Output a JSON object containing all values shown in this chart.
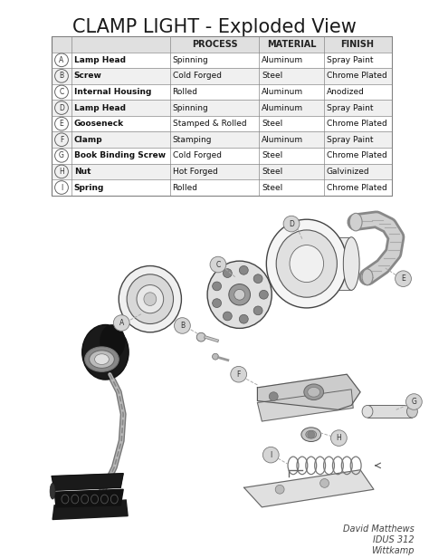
{
  "title": "CLAMP LIGHT - Exploded View",
  "title_fontsize": 15,
  "background_color": "#ffffff",
  "table_rows": [
    [
      "A",
      "Lamp Head",
      "Spinning",
      "Aluminum",
      "Spray Paint"
    ],
    [
      "B",
      "Screw",
      "Cold Forged",
      "Steel",
      "Chrome Plated"
    ],
    [
      "C",
      "Internal Housing",
      "Rolled",
      "Aluminum",
      "Anodized"
    ],
    [
      "D",
      "Lamp Head",
      "Spinning",
      "Aluminum",
      "Spray Paint"
    ],
    [
      "E",
      "Gooseneck",
      "Stamped & Rolled",
      "Steel",
      "Chrome Plated"
    ],
    [
      "F",
      "Clamp",
      "Stamping",
      "Aluminum",
      "Spray Paint"
    ],
    [
      "G",
      "Book Binding Screw",
      "Cold Forged",
      "Steel",
      "Chrome Plated"
    ],
    [
      "H",
      "Nut",
      "Hot Forged",
      "Steel",
      "Galvinized"
    ],
    [
      "I",
      "Spring",
      "Rolled",
      "Steel",
      "Chrome Plated"
    ]
  ],
  "credit_lines": [
    "David Matthews",
    "IDUS 312",
    "Wittkamp"
  ],
  "credit_fontsize": 7,
  "header_fontsize": 7,
  "row_fontsize": 6.5,
  "label_fontsize": 5.5
}
